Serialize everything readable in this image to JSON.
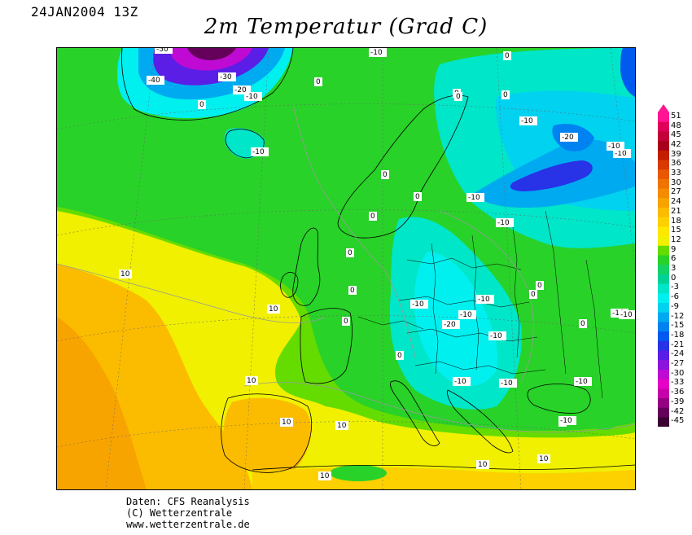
{
  "header": {
    "timestamp": "24JAN2004 13Z",
    "title": "2m Temperatur (Grad C)"
  },
  "legend": {
    "values": [
      "51",
      "48",
      "45",
      "42",
      "39",
      "36",
      "33",
      "30",
      "27",
      "24",
      "21",
      "18",
      "15",
      "12",
      "9",
      "6",
      "3",
      "0",
      "-3",
      "-6",
      "-9",
      "-12",
      "-15",
      "-18",
      "-21",
      "-24",
      "-27",
      "-30",
      "-33",
      "-36",
      "-39",
      "-42",
      "-45"
    ],
    "colors": [
      "#ff1493",
      "#e0005a",
      "#c4003a",
      "#a8001c",
      "#c41e00",
      "#d83a00",
      "#e85800",
      "#f07400",
      "#f58c00",
      "#f8a400",
      "#fbbc00",
      "#fdd000",
      "#ffe800",
      "#f0f000",
      "#64dc00",
      "#28d228",
      "#14d264",
      "#00d296",
      "#00e6c8",
      "#00f0f0",
      "#00d2f0",
      "#00aaf0",
      "#0082f0",
      "#005af0",
      "#2832e6",
      "#5a1ee6",
      "#8c14dc",
      "#be0ad2",
      "#e600c8",
      "#c800aa",
      "#960082",
      "#64005a",
      "#3c0032"
    ]
  },
  "contour_labels": [
    {
      "text": "-40"
    },
    {
      "text": "-50"
    },
    {
      "text": "-30"
    },
    {
      "text": "-20"
    },
    {
      "text": "-10"
    },
    {
      "text": "-10"
    },
    {
      "text": "0"
    },
    {
      "text": "0"
    },
    {
      "text": "0"
    },
    {
      "text": "-10"
    },
    {
      "text": "0"
    },
    {
      "text": "0"
    },
    {
      "text": "0"
    },
    {
      "text": "0"
    },
    {
      "text": "-10"
    },
    {
      "text": "-10"
    },
    {
      "text": "-10"
    },
    {
      "text": "-20"
    },
    {
      "text": "-10"
    },
    {
      "text": "-10"
    },
    {
      "text": "-20"
    },
    {
      "text": "0"
    },
    {
      "text": "0"
    },
    {
      "text": "0"
    },
    {
      "text": "-10"
    },
    {
      "text": "-10"
    },
    {
      "text": "-10"
    },
    {
      "text": "0"
    },
    {
      "text": "-10"
    },
    {
      "text": "-10"
    },
    {
      "text": "-10"
    },
    {
      "text": "-10"
    },
    {
      "text": "-10"
    },
    {
      "text": "0"
    },
    {
      "text": "0"
    },
    {
      "text": "0"
    },
    {
      "text": "10"
    },
    {
      "text": "10"
    },
    {
      "text": "10"
    },
    {
      "text": "10"
    },
    {
      "text": "10"
    },
    {
      "text": "10"
    },
    {
      "text": "10"
    },
    {
      "text": "10"
    },
    {
      "text": "0"
    },
    {
      "text": "0"
    },
    {
      "text": "-10"
    },
    {
      "text": "-10"
    },
    {
      "text": "0"
    }
  ],
  "footer": {
    "line1": "Daten: CFS Reanalysis",
    "line2": "(C) Wetterzentrale",
    "line3": "www.wetterzentrale.de"
  }
}
